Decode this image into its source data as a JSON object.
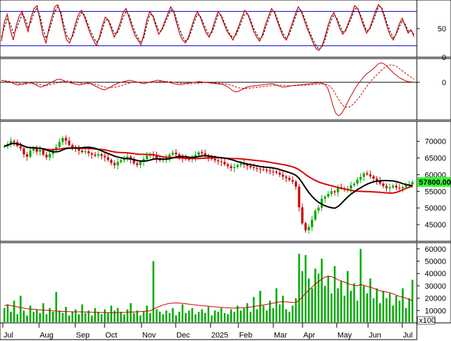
{
  "chart_data": [
    {
      "type": "line",
      "panel": "stochastic",
      "y_ticks": [
        0,
        50
      ],
      "ylim": [
        0,
        100
      ],
      "reference_levels": [
        80,
        20
      ],
      "series_colors": {
        "k_line": "#cc0000",
        "d_line": "#000000",
        "levels": "#0000cc"
      },
      "series": [
        {
          "style": "solid",
          "values": [
            28,
            62,
            75,
            48,
            30,
            55,
            72,
            80,
            60,
            45,
            70,
            85,
            90,
            65,
            40,
            25,
            50,
            70,
            88,
            92,
            75,
            50,
            30,
            25,
            40,
            60,
            75,
            82,
            70,
            55,
            40,
            30,
            20,
            35,
            55,
            70,
            65,
            50,
            35,
            45,
            60,
            78,
            85,
            70,
            52,
            38,
            30,
            22,
            40,
            65,
            80,
            72,
            55,
            40,
            48,
            62,
            75,
            88,
            80,
            60,
            42,
            30,
            25,
            35,
            52,
            68,
            80,
            70,
            55,
            42,
            35,
            48,
            65,
            80,
            72,
            58,
            45,
            38,
            30,
            42,
            55,
            70,
            82,
            75,
            60,
            45,
            35,
            28,
            40,
            58,
            72,
            85,
            78,
            62,
            48,
            35,
            30,
            45,
            60,
            75,
            88,
            80,
            65,
            50,
            38,
            25,
            15,
            12,
            20,
            35,
            55,
            70,
            78,
            65,
            50,
            40,
            48,
            62,
            75,
            90,
            85,
            70,
            55,
            42,
            50,
            65,
            80,
            92,
            86,
            70,
            52,
            38,
            30,
            42,
            58,
            68,
            55,
            42,
            48,
            36
          ]
        },
        {
          "style": "dashed",
          "values": [
            35,
            52,
            68,
            58,
            42,
            48,
            62,
            75,
            68,
            52,
            62,
            78,
            86,
            72,
            50,
            33,
            45,
            62,
            80,
            88,
            80,
            58,
            38,
            30,
            36,
            52,
            68,
            78,
            74,
            60,
            46,
            35,
            26,
            32,
            48,
            64,
            66,
            55,
            42,
            42,
            54,
            70,
            80,
            74,
            58,
            44,
            34,
            26,
            34,
            56,
            74,
            74,
            60,
            46,
            46,
            58,
            70,
            82,
            82,
            66,
            50,
            36,
            28,
            32,
            46,
            62,
            75,
            72,
            60,
            48,
            38,
            44,
            58,
            74,
            74,
            62,
            50,
            40,
            34,
            38,
            50,
            64,
            76,
            76,
            64,
            50,
            40,
            32,
            36,
            52,
            66,
            80,
            80,
            66,
            52,
            40,
            32,
            40,
            54,
            70,
            82,
            82,
            70,
            56,
            42,
            30,
            20,
            14,
            18,
            30,
            48,
            64,
            74,
            68,
            56,
            44,
            46,
            58,
            70,
            84,
            86,
            74,
            60,
            46,
            48,
            60,
            74,
            88,
            88,
            74,
            58,
            44,
            34,
            40,
            52,
            64,
            58,
            46,
            46,
            40
          ]
        }
      ]
    },
    {
      "type": "line",
      "panel": "macd",
      "y_ticks": [
        0
      ],
      "series_colors": {
        "macd": "#cc0000",
        "signal": "#cc0000",
        "zero": "#000000"
      },
      "series": [
        {
          "style": "solid",
          "values": [
            300,
            200,
            100,
            50,
            -100,
            -300,
            -400,
            -300,
            -200,
            -100,
            0,
            -100,
            -300,
            -500,
            -700,
            -600,
            -400,
            -200,
            0,
            200,
            400,
            450,
            300,
            100,
            0,
            -100,
            -200,
            -300,
            -400,
            -300,
            -200,
            -100,
            -200,
            -400,
            -600,
            -800,
            -1000,
            -1100,
            -900,
            -700,
            -500,
            -300,
            -100,
            0,
            100,
            200,
            300,
            200,
            100,
            0,
            -100,
            -200,
            -100,
            0,
            100,
            200,
            300,
            250,
            150,
            50,
            0,
            -100,
            -200,
            -300,
            -350,
            -300,
            -200,
            -100,
            -50,
            0,
            50,
            100,
            50,
            0,
            -50,
            -100,
            -150,
            -200,
            -250,
            -300,
            -400,
            -600,
            -900,
            -1200,
            -1400,
            -1300,
            -1100,
            -900,
            -700,
            -600,
            -550,
            -500,
            -450,
            -400,
            -350,
            -300,
            -250,
            -200,
            -300,
            -450,
            -600,
            -700,
            -650,
            -600,
            -500,
            -450,
            -400,
            -380,
            -350,
            -300,
            -250,
            -200,
            -150,
            -100,
            -50,
            -150,
            -300,
            -800,
            -2000,
            -3500,
            -4500,
            -4800,
            -4500,
            -3800,
            -3000,
            -2200,
            -1500,
            -800,
            -200,
            300,
            800,
            1200,
            1500,
            1800,
            2200,
            2600,
            2800,
            2700,
            2400,
            2000,
            1600,
            1200,
            900,
            600,
            400,
            200,
            100,
            50,
            30
          ]
        },
        {
          "style": "dashed",
          "values": [
            250,
            230,
            180,
            120,
            50,
            -50,
            -150,
            -250,
            -270,
            -230,
            -180,
            -150,
            -180,
            -250,
            -350,
            -420,
            -430,
            -400,
            -320,
            -200,
            -80,
            50,
            150,
            200,
            180,
            120,
            50,
            -20,
            -100,
            -180,
            -220,
            -200,
            -200,
            -250,
            -320,
            -420,
            -550,
            -680,
            -780,
            -800,
            -760,
            -690,
            -600,
            -480,
            -350,
            -220,
            -100,
            -20,
            20,
            30,
            10,
            -20,
            -40,
            -40,
            -20,
            20,
            70,
            110,
            130,
            120,
            100,
            60,
            0,
            -60,
            -120,
            -170,
            -200,
            -210,
            -200,
            -180,
            -150,
            -110,
            -80,
            -60,
            -60,
            -70,
            -90,
            -110,
            -140,
            -170,
            -210,
            -270,
            -370,
            -500,
            -650,
            -780,
            -850,
            -880,
            -870,
            -840,
            -800,
            -760,
            -710,
            -660,
            -610,
            -560,
            -510,
            -460,
            -420,
            -410,
            -420,
            -450,
            -480,
            -500,
            -500,
            -490,
            -470,
            -450,
            -430,
            -410,
            -390,
            -360,
            -330,
            -300,
            -270,
            -250,
            -260,
            -350,
            -600,
            -1100,
            -1800,
            -2500,
            -3100,
            -3500,
            -3600,
            -3500,
            -3200,
            -2800,
            -2300,
            -1800,
            -1200,
            -600,
            -100,
            400,
            800,
            1200,
            1600,
            2000,
            2300,
            2500,
            2500,
            2400,
            2200,
            1900,
            1600,
            1300,
            1000,
            700,
            450
          ]
        }
      ]
    },
    {
      "type": "candlestick",
      "panel": "price",
      "y_ticks": [
        45000,
        50000,
        55000,
        60000,
        65000,
        70000
      ],
      "ylim": [
        40000,
        76000
      ],
      "x_ticks": [
        "Jul",
        "Aug",
        "Sep",
        "Oct",
        "Nov",
        "Dec",
        "2025",
        "Feb",
        "Mar",
        "Apr",
        "May",
        "Jun",
        "Jul"
      ],
      "last_price_label": "57800.00",
      "colors": {
        "up": "#00aa00",
        "down": "#cc0000",
        "ma_fast": "#000000",
        "ma_slow": "#dd0000",
        "badge": "#33ff33"
      },
      "close": [
        68500,
        69200,
        70100,
        69800,
        68600,
        67900,
        66100,
        65400,
        67200,
        68000,
        66900,
        67500,
        66000,
        65200,
        66200,
        67400,
        68300,
        69800,
        71000,
        70200,
        68900,
        68000,
        67800,
        67200,
        66800,
        67000,
        66400,
        66000,
        65700,
        66100,
        65600,
        65200,
        64400,
        63500,
        62800,
        63800,
        64300,
        64900,
        65400,
        64600,
        63400,
        62900,
        63900,
        64700,
        65700,
        66200,
        65800,
        64800,
        64300,
        64500,
        65000,
        66000,
        66600,
        66100,
        65400,
        64900,
        64700,
        64600,
        65100,
        65900,
        66700,
        66400,
        65800,
        65200,
        64700,
        64300,
        64000,
        63800,
        63100,
        62500,
        62000,
        62300,
        62900,
        63300,
        63000,
        62600,
        62200,
        62000,
        61800,
        61600,
        61500,
        61200,
        61000,
        60900,
        60600,
        60000,
        59400,
        59000,
        58400,
        57900,
        56400,
        50200,
        45400,
        43300,
        44300,
        46500,
        49200,
        50100,
        52800,
        53400,
        54200,
        55000,
        54700,
        56200,
        55900,
        55600,
        55800,
        56800,
        57300,
        58500,
        59300,
        60400,
        60100,
        59500,
        58800,
        58200,
        57300,
        56600,
        55900,
        56200,
        56700,
        56100,
        55900,
        56300,
        56800,
        57100,
        57800
      ]
    },
    {
      "type": "bar",
      "panel": "volume",
      "y_ticks": [
        10000,
        20000,
        30000,
        40000,
        50000,
        60000
      ],
      "ylim": [
        0,
        65000
      ],
      "unit_label": "x100",
      "colors": {
        "bar": "#00aa00",
        "ma": "#cc0000"
      },
      "values": [
        12000,
        15000,
        9000,
        18000,
        7000,
        22000,
        10000,
        6000,
        14000,
        9000,
        11000,
        8000,
        16000,
        7000,
        12000,
        9000,
        25000,
        10000,
        8000,
        13000,
        6000,
        9000,
        11000,
        7000,
        15000,
        8000,
        10000,
        6000,
        12000,
        9000,
        7000,
        11000,
        8000,
        14000,
        10000,
        12000,
        9000,
        7000,
        11000,
        16000,
        8000,
        10000,
        6000,
        9000,
        14000,
        8000,
        50000,
        11000,
        9000,
        7000,
        10000,
        8000,
        12000,
        6000,
        9000,
        15000,
        8000,
        10000,
        12000,
        7000,
        9000,
        11000,
        8000,
        13000,
        6000,
        10000,
        9000,
        12000,
        8000,
        7000,
        11000,
        9000,
        14000,
        10000,
        12000,
        16000,
        9000,
        21000,
        11000,
        26000,
        14000,
        10000,
        18000,
        12000,
        28000,
        15000,
        22000,
        11000,
        9000,
        14000,
        20000,
        56000,
        42000,
        55000,
        36000,
        28000,
        44000,
        40000,
        52000,
        30000,
        38000,
        24000,
        46000,
        28000,
        34000,
        22000,
        42000,
        26000,
        32000,
        18000,
        60000,
        30000,
        24000,
        36000,
        20000,
        28000,
        16000,
        26000,
        20000,
        24000,
        14000,
        22000,
        18000,
        28000,
        12000,
        20000,
        35000
      ],
      "ma_values": [
        14000,
        14500,
        14000,
        13500,
        13000,
        12500,
        12000,
        11500,
        11200,
        11000,
        10800,
        10500,
        10300,
        10200,
        10000,
        9800,
        9600,
        9400,
        9300,
        9200,
        9100,
        9000,
        9000,
        9000,
        8900,
        8800,
        8700,
        8600,
        8500,
        8500,
        8400,
        8300,
        8300,
        8200,
        8200,
        8300,
        8400,
        8500,
        8600,
        8700,
        8800,
        9000,
        9200,
        9400,
        9600,
        9800,
        11000,
        12500,
        13500,
        14500,
        15200,
        15800,
        16000,
        16200,
        16000,
        15800,
        15500,
        15200,
        14800,
        14500,
        14200,
        14000,
        13800,
        13500,
        13200,
        13000,
        12800,
        12600,
        12400,
        12200,
        12000,
        12000,
        12100,
        12200,
        12300,
        12500,
        12800,
        13200,
        13600,
        14000,
        14500,
        15000,
        15500,
        16000,
        16500,
        17000,
        17200,
        17000,
        16800,
        16500,
        16600,
        18000,
        21000,
        24000,
        26500,
        29000,
        31500,
        33500,
        35500,
        37000,
        38000,
        37500,
        36500,
        35000,
        34000,
        33000,
        32000,
        31000,
        30500,
        30000,
        31000,
        30500,
        29500,
        29000,
        28000,
        27000,
        26000,
        25500,
        25000,
        24500,
        23500,
        22500,
        21500,
        21000,
        20000,
        19000,
        18000
      ]
    }
  ]
}
